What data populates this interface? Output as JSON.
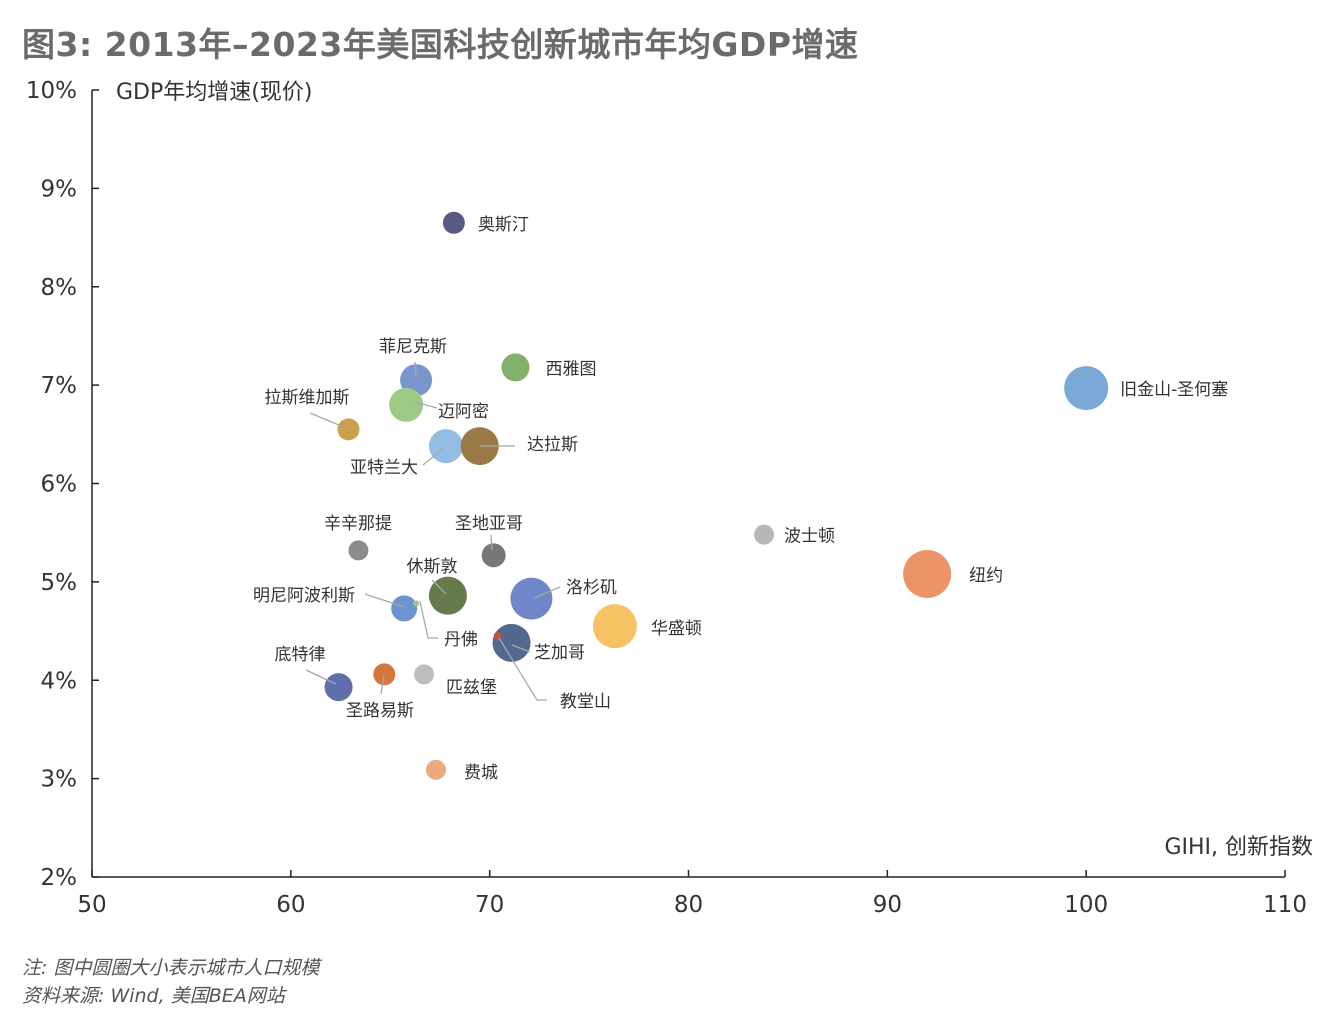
{
  "title": "图3: 2013年–2023年美国科技创新城市年均GDP增速",
  "notes": [
    "注: 图中圆圈大小表示城市人口规模",
    "资料来源: Wind, 美国BEA网站"
  ],
  "chart_data": {
    "type": "scatter",
    "xlabel": "GIHI, 创新指数",
    "ylabel": "GDP年均增速(现价)",
    "xlim": [
      50,
      110
    ],
    "ylim": [
      2,
      10
    ],
    "x_ticks": [
      "50",
      "60",
      "70",
      "80",
      "90",
      "100",
      "110"
    ],
    "y_ticks": [
      "2%",
      "3%",
      "4%",
      "5%",
      "6%",
      "7%",
      "8%",
      "9%",
      "10%"
    ],
    "grid": false,
    "size_encodes": "城市人口规模",
    "points": [
      {
        "label": "奥斯汀",
        "x": 68.2,
        "y": 8.65,
        "size": 11,
        "color": "#5a5b85"
      },
      {
        "label": "西雅图",
        "x": 71.3,
        "y": 7.18,
        "size": 14,
        "color": "#83b06a"
      },
      {
        "label": "菲尼克斯",
        "x": 66.3,
        "y": 7.05,
        "size": 16,
        "color": "#7a95cc"
      },
      {
        "label": "拉斯维加斯",
        "x": 62.9,
        "y": 6.55,
        "size": 11,
        "color": "#c9a04d"
      },
      {
        "label": "迈阿密",
        "x": 65.8,
        "y": 6.8,
        "size": 17,
        "color": "#9fca85"
      },
      {
        "label": "亚特兰大",
        "x": 67.8,
        "y": 6.38,
        "size": 17,
        "color": "#93bde3"
      },
      {
        "label": "达拉斯",
        "x": 69.5,
        "y": 6.38,
        "size": 19,
        "color": "#9a7a44"
      },
      {
        "label": "旧金山-圣何塞",
        "x": 100.0,
        "y": 6.97,
        "size": 22,
        "color": "#7aa8d7"
      },
      {
        "label": "辛辛那提",
        "x": 63.4,
        "y": 5.32,
        "size": 10,
        "color": "#8c8c8c"
      },
      {
        "label": "圣地亚哥",
        "x": 70.2,
        "y": 5.27,
        "size": 12,
        "color": "#777777"
      },
      {
        "label": "波士顿",
        "x": 83.8,
        "y": 5.48,
        "size": 10,
        "color": "#b7b7b7"
      },
      {
        "label": "纽约",
        "x": 92.0,
        "y": 5.08,
        "size": 24,
        "color": "#ec9466"
      },
      {
        "label": "休斯敦",
        "x": 67.9,
        "y": 4.86,
        "size": 19,
        "color": "#667a4c"
      },
      {
        "label": "洛杉矶",
        "x": 72.1,
        "y": 4.83,
        "size": 21,
        "color": "#6f86c8"
      },
      {
        "label": "明尼阿波利斯",
        "x": 65.7,
        "y": 4.73,
        "size": 13,
        "color": "#6c95cf"
      },
      {
        "label": "丹佛",
        "x": 66.3,
        "y": 4.78,
        "size": 3,
        "color": "#a6c47a"
      },
      {
        "label": "华盛顿",
        "x": 76.3,
        "y": 4.55,
        "size": 22,
        "color": "#f6c264"
      },
      {
        "label": "芝加哥",
        "x": 71.1,
        "y": 4.38,
        "size": 19,
        "color": "#53688f"
      },
      {
        "label": "教堂山",
        "x": 70.4,
        "y": 4.45,
        "size": 4,
        "color": "#c0553a"
      },
      {
        "label": "底特律",
        "x": 62.4,
        "y": 3.93,
        "size": 14,
        "color": "#5e6fab"
      },
      {
        "label": "圣路易斯",
        "x": 64.7,
        "y": 4.06,
        "size": 11,
        "color": "#d4763e"
      },
      {
        "label": "匹兹堡",
        "x": 66.7,
        "y": 4.06,
        "size": 10,
        "color": "#bdbdbd"
      },
      {
        "label": "费城",
        "x": 67.3,
        "y": 3.09,
        "size": 10,
        "color": "#ecab7e"
      }
    ]
  }
}
